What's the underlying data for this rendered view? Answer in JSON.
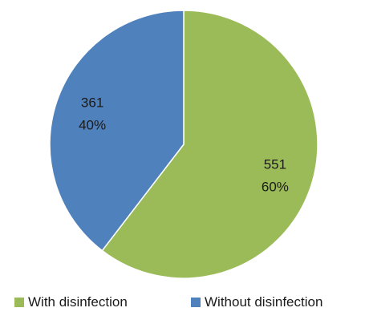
{
  "chart_data": {
    "type": "pie",
    "slices": [
      {
        "label": "With disinfection",
        "value": 551,
        "percent": "60%",
        "color": "#9bbb59"
      },
      {
        "label": "Without disinfection",
        "value": 361,
        "percent": "40%",
        "color": "#4f81bd"
      }
    ],
    "legend_placement": "bottom"
  }
}
